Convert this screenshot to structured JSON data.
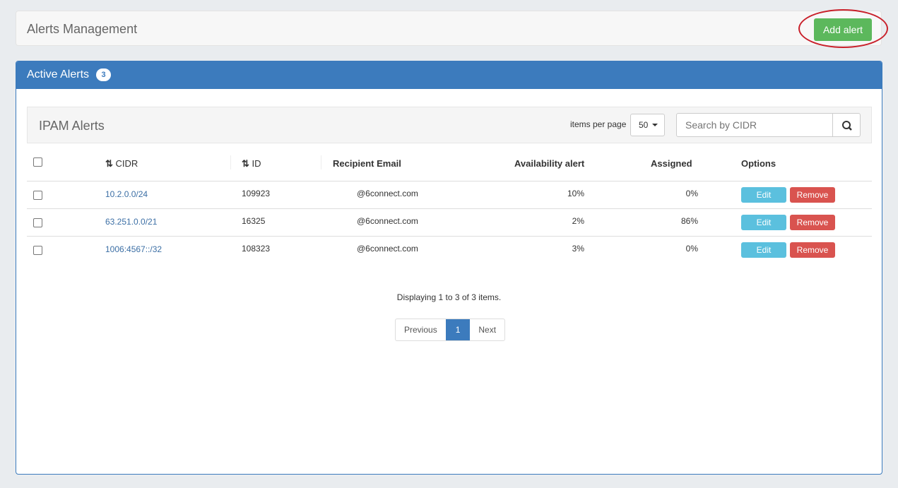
{
  "header": {
    "title": "Alerts Management",
    "add_label": "Add alert"
  },
  "panel": {
    "title": "Active Alerts",
    "count": "3"
  },
  "toolbar": {
    "title": "IPAM Alerts",
    "items_per_page_label": "items per page",
    "items_per_page": "50",
    "search_placeholder": "Search by CIDR"
  },
  "table": {
    "columns": [
      "CIDR",
      "ID",
      "Recipient Email",
      "Availability alert",
      "Assigned",
      "Options"
    ],
    "rows": [
      {
        "cidr": "10.2.0.0/24",
        "id": "109923",
        "email": "@6connect.com",
        "availability": "10%",
        "assigned": "0%"
      },
      {
        "cidr": "63.251.0.0/21",
        "id": "16325",
        "email": "@6connect.com",
        "availability": "2%",
        "assigned": "86%"
      },
      {
        "cidr": "1006:4567::/32",
        "id": "108323",
        "email": "@6connect.com",
        "availability": "3%",
        "assigned": "0%"
      }
    ],
    "edit_label": "Edit",
    "remove_label": "Remove"
  },
  "footer": {
    "summary": "Displaying 1 to 3 of 3 items.",
    "prev": "Previous",
    "page": "1",
    "next": "Next"
  },
  "colors": {
    "primary": "#3c7bbd",
    "success": "#5cb85c",
    "info": "#5bc0de",
    "danger": "#d9534f",
    "highlight": "#c9202a"
  }
}
